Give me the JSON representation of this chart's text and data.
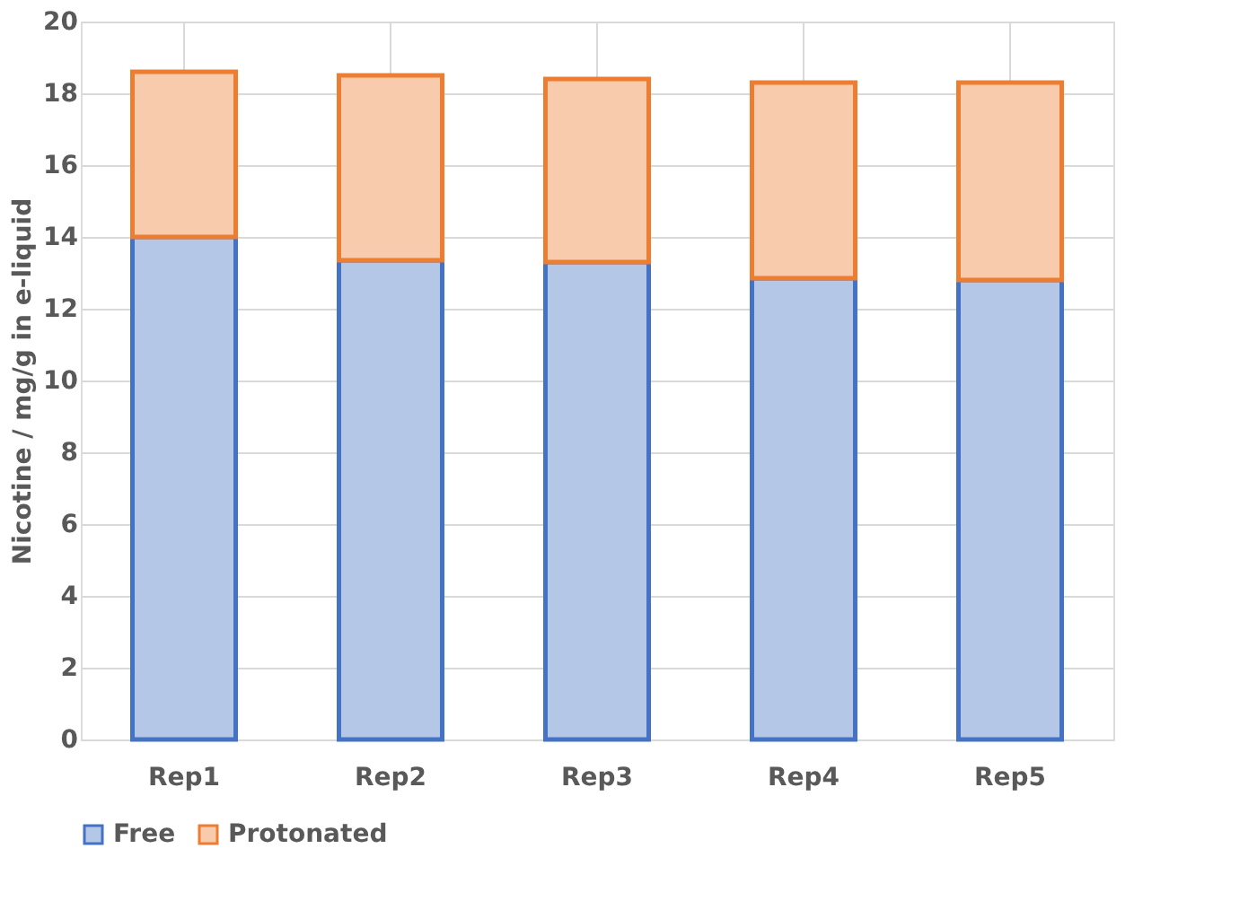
{
  "chart_data": {
    "type": "bar",
    "stacked": true,
    "ylabel": "Nicotine / mg/g in e-liquid",
    "categories": [
      "Rep1",
      "Rep2",
      "Rep3",
      "Rep4",
      "Rep5"
    ],
    "series": [
      {
        "name": "Free",
        "color": "#b4c7e7",
        "values": [
          14.0,
          13.35,
          13.3,
          12.85,
          12.8
        ]
      },
      {
        "name": "Protonated",
        "color": "#f8cbad",
        "values": [
          4.6,
          5.15,
          5.1,
          5.45,
          5.5
        ]
      }
    ],
    "ylim": [
      0,
      20
    ],
    "yticks": [
      0,
      2,
      4,
      6,
      8,
      10,
      12,
      14,
      16,
      18,
      20
    ],
    "grid": true,
    "legend": "bottom"
  }
}
